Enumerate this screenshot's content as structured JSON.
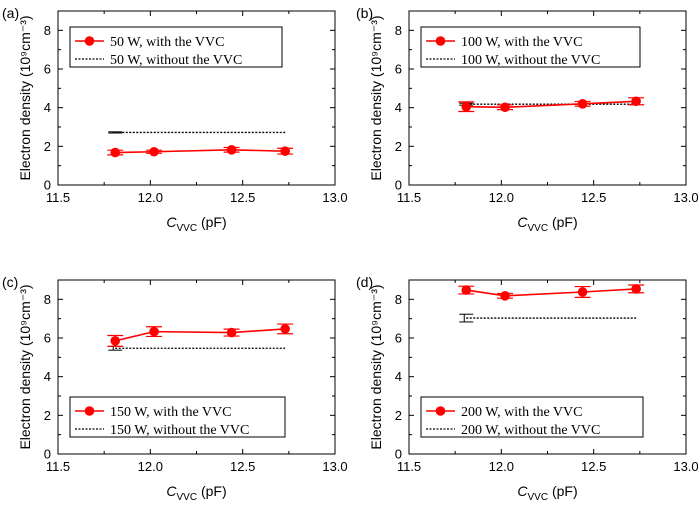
{
  "chart_data": [
    {
      "type": "line",
      "panel_label": "(a)",
      "x": [
        11.81,
        12.02,
        12.44,
        12.73
      ],
      "series": [
        {
          "name": "50 W, with the VVC",
          "color": "#ff0000",
          "marker": "circle",
          "values": [
            1.68,
            1.72,
            1.82,
            1.75
          ],
          "errors": [
            0.12,
            0.08,
            0.12,
            0.15
          ]
        },
        {
          "name": "50 W, without the VVC",
          "color": "#000000",
          "line_style": "dotted",
          "x_range": [
            11.81,
            12.73
          ],
          "value": 2.72,
          "error": 0.03
        }
      ],
      "xlabel_main": "C",
      "xlabel_sub": "VVC",
      "xlabel_unit": " (pF)",
      "ylabel": "Electron density (10⁹cm⁻³)",
      "xlim": [
        11.5,
        13.0
      ],
      "ylim": [
        0,
        9
      ],
      "xticks": [
        "11.5",
        "12.0",
        "12.5",
        "13.0"
      ],
      "yticks": [
        "0",
        "2",
        "4",
        "6",
        "8"
      ],
      "legend_position": "top-left"
    },
    {
      "type": "line",
      "panel_label": "(b)",
      "x": [
        11.81,
        12.02,
        12.44,
        12.73
      ],
      "series": [
        {
          "name": "100 W, with the VVC",
          "color": "#ff0000",
          "marker": "circle",
          "values": [
            4.05,
            4.02,
            4.2,
            4.33
          ],
          "errors": [
            0.25,
            0.12,
            0.12,
            0.18
          ]
        },
        {
          "name": "100 W, without the VVC",
          "color": "#000000",
          "line_style": "dotted",
          "x_range": [
            11.81,
            12.73
          ],
          "value": 4.18,
          "error": 0.05
        }
      ],
      "xlabel_main": "C",
      "xlabel_sub": "VVC",
      "xlabel_unit": " (pF)",
      "ylabel": "Electron density (10⁹cm⁻³)",
      "xlim": [
        11.5,
        13.0
      ],
      "ylim": [
        0,
        9
      ],
      "xticks": [
        "11.5",
        "12.0",
        "12.5",
        "13.0"
      ],
      "yticks": [
        "0",
        "2",
        "4",
        "6",
        "8"
      ],
      "legend_position": "top-left"
    },
    {
      "type": "line",
      "panel_label": "(c)",
      "x": [
        11.81,
        12.02,
        12.44,
        12.73
      ],
      "series": [
        {
          "name": "150 W, with the VVC",
          "color": "#ff0000",
          "marker": "circle",
          "values": [
            5.85,
            6.33,
            6.28,
            6.47
          ],
          "errors": [
            0.28,
            0.25,
            0.18,
            0.25
          ]
        },
        {
          "name": "150 W, without the VVC",
          "color": "#000000",
          "line_style": "dotted",
          "x_range": [
            11.81,
            12.73
          ],
          "value": 5.47,
          "error": 0.1
        }
      ],
      "xlabel_main": "C",
      "xlabel_sub": "VVC",
      "xlabel_unit": " (pF)",
      "ylabel": "Electron density (10⁹cm⁻³)",
      "xlim": [
        11.5,
        13.0
      ],
      "ylim": [
        0,
        9
      ],
      "xticks": [
        "11.5",
        "12.0",
        "12.5",
        "13.0"
      ],
      "yticks": [
        "0",
        "2",
        "4",
        "6",
        "8"
      ],
      "legend_position": "bottom-left"
    },
    {
      "type": "line",
      "panel_label": "(d)",
      "x": [
        11.81,
        12.02,
        12.44,
        12.73
      ],
      "series": [
        {
          "name": "200 W, with the VVC",
          "color": "#ff0000",
          "marker": "circle",
          "values": [
            8.48,
            8.18,
            8.38,
            8.54
          ],
          "errors": [
            0.2,
            0.12,
            0.28,
            0.2
          ]
        },
        {
          "name": "200 W, without the VVC",
          "color": "#000000",
          "line_style": "dotted",
          "x_range": [
            11.81,
            12.73
          ],
          "value": 7.03,
          "error": 0.2
        }
      ],
      "xlabel_main": "C",
      "xlabel_sub": "VVC",
      "xlabel_unit": " (pF)",
      "ylabel": "Electron density (10⁹cm⁻³)",
      "xlim": [
        11.5,
        13.0
      ],
      "ylim": [
        0,
        9
      ],
      "xticks": [
        "11.5",
        "12.0",
        "12.5",
        "13.0"
      ],
      "yticks": [
        "0",
        "2",
        "4",
        "6",
        "8"
      ],
      "legend_position": "bottom-left"
    }
  ]
}
